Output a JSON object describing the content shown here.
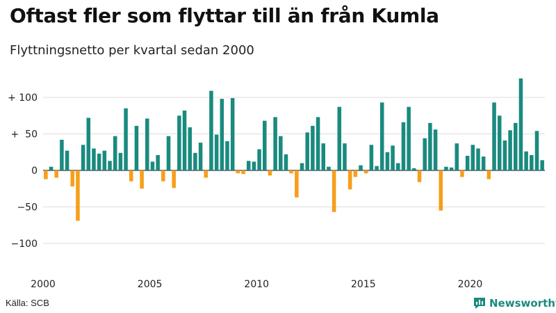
{
  "title": "Oftast fler som flyttar till än från Kumla",
  "subtitle": "Flyttningsnetto per kvartal sedan 2000",
  "source": "Källa: SCB",
  "brand": {
    "name": "Newsworthy",
    "logo_icon": "newsworthy-logo-icon"
  },
  "colors": {
    "positive": "#1a8a7f",
    "negative": "#f59f1b",
    "grid": "#dddddd",
    "zero": "#333333"
  },
  "chart_data": {
    "type": "bar",
    "xlabel": "",
    "ylabel": "",
    "ylim": [
      -135,
      135
    ],
    "yticks": [
      {
        "value": 100,
        "label": "+ 100"
      },
      {
        "value": 50,
        "label": "+  50"
      },
      {
        "value": 0,
        "label": "0"
      },
      {
        "value": -50,
        "label": "−50"
      },
      {
        "value": -100,
        "label": "−100"
      }
    ],
    "xticks": [
      {
        "year": 2000,
        "label": "2000"
      },
      {
        "year": 2005,
        "label": "2005"
      },
      {
        "year": 2010,
        "label": "2010"
      },
      {
        "year": 2015,
        "label": "2015"
      },
      {
        "year": 2020,
        "label": "2020"
      }
    ],
    "start": "2000 Q1",
    "values": [
      -12,
      5,
      -10,
      42,
      27,
      -22,
      -69,
      35,
      72,
      30,
      23,
      27,
      13,
      47,
      24,
      85,
      -15,
      61,
      -25,
      71,
      12,
      21,
      -15,
      47,
      -24,
      75,
      82,
      59,
      24,
      38,
      -10,
      109,
      49,
      98,
      40,
      99,
      -4,
      -5,
      13,
      12,
      29,
      68,
      -7,
      73,
      47,
      22,
      -4,
      -37,
      10,
      52,
      61,
      73,
      37,
      5,
      -57,
      87,
      37,
      -26,
      -9,
      7,
      -4,
      35,
      6,
      93,
      25,
      34,
      10,
      66,
      87,
      3,
      -16,
      44,
      65,
      56,
      -55,
      5,
      4,
      37,
      -9,
      20,
      35,
      30,
      19,
      -12,
      93,
      75,
      41,
      55,
      65,
      126,
      26,
      21,
      54,
      14
    ]
  }
}
